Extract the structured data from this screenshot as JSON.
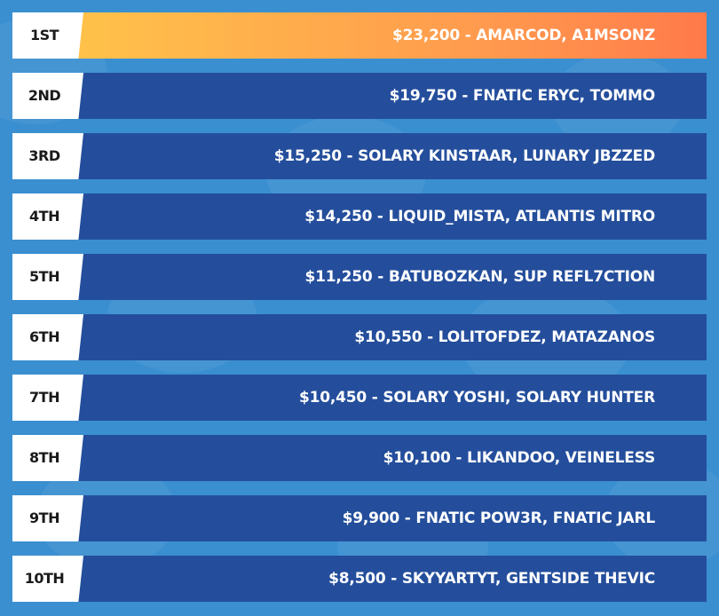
{
  "leaderboard": {
    "rows": [
      {
        "rank": "1ST",
        "text": "$23,200 - AMARCOD, A1MSONZ",
        "highlight": true
      },
      {
        "rank": "2ND",
        "text": "$19,750 - FNATIC ERYC, TOMMO",
        "highlight": false
      },
      {
        "rank": "3RD",
        "text": "$15,250 - SOLARY KINSTAAR, LUNARY JBZZED",
        "highlight": false
      },
      {
        "rank": "4TH",
        "text": "$14,250 - LIQUID_MISTA, ATLANTIS MITRO",
        "highlight": false
      },
      {
        "rank": "5TH",
        "text": "$11,250 - BATUBOZKAN, SUP REFL7CTION",
        "highlight": false
      },
      {
        "rank": "6TH",
        "text": "$10,550 - LOLITOFDEZ, MATAZANOS",
        "highlight": false
      },
      {
        "rank": "7TH",
        "text": "$10,450 - SOLARY YOSHI, SOLARY HUNTER",
        "highlight": false
      },
      {
        "rank": "8TH",
        "text": "$10,100 - LIKANDOO, VEINELESS",
        "highlight": false
      },
      {
        "rank": "9TH",
        "text": "$9,900 - FNATIC POW3R, FNATIC JARL",
        "highlight": false
      },
      {
        "rank": "10TH",
        "text": "$8,500 - SKYYARTYT, GENTSIDE THEVIC",
        "highlight": false
      }
    ]
  },
  "colors": {
    "background": "#3a8fd0",
    "bar": "#244e9c",
    "gold_start": "#ffc24a",
    "gold_end": "#ff7a4a",
    "rank_box": "#ffffff"
  }
}
